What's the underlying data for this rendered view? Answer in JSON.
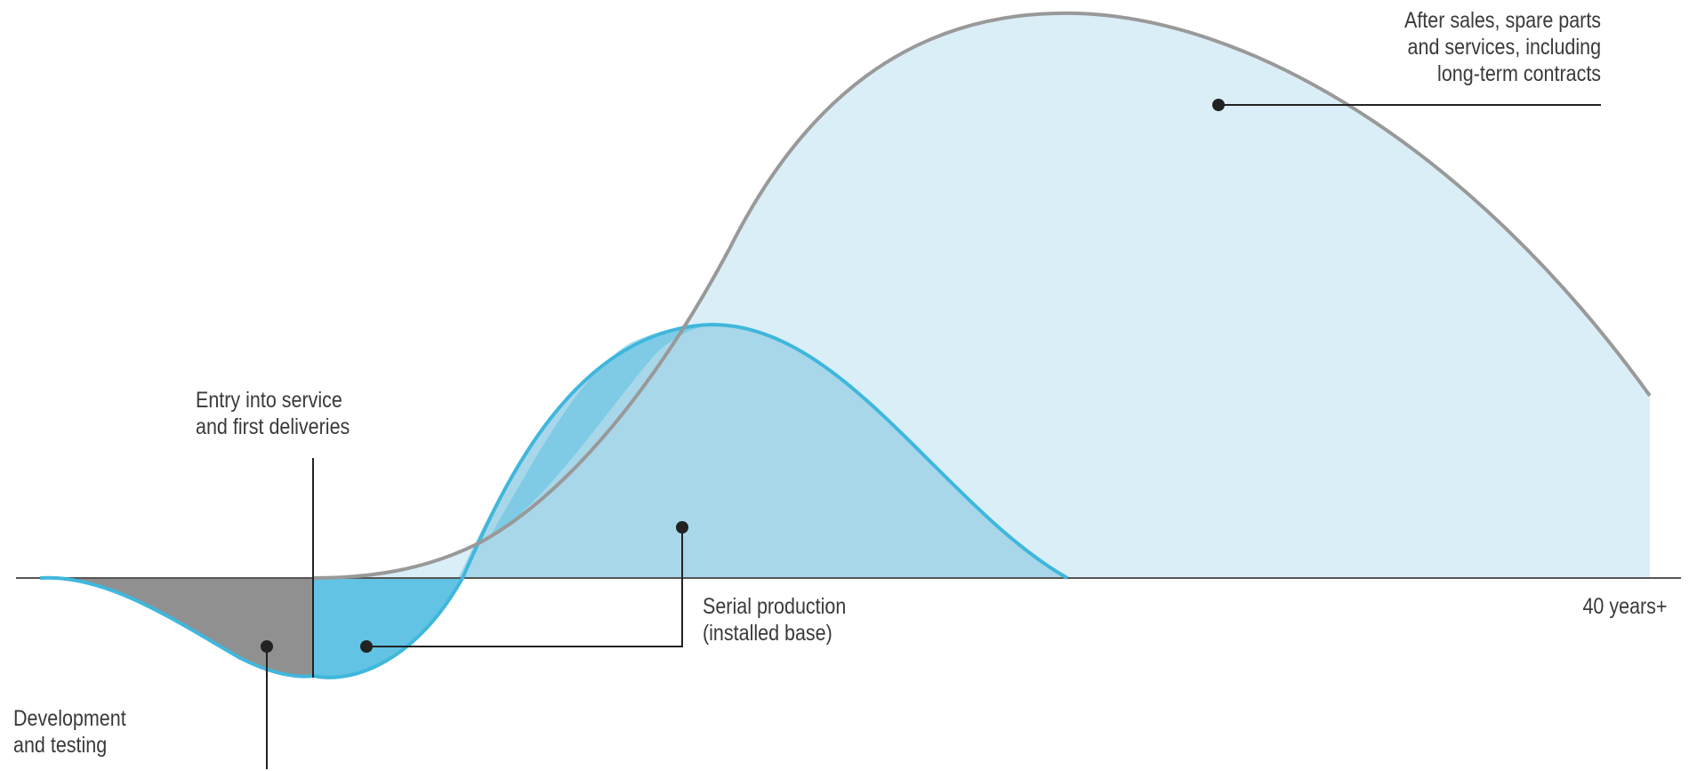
{
  "labels": {
    "development": [
      "Development",
      "and testing"
    ],
    "entry": [
      "Entry into service",
      "and first deliveries"
    ],
    "serial": [
      "Serial production",
      "(installed base)"
    ],
    "aftersales": [
      "After sales, spare parts",
      "and services, including",
      "long-term contracts"
    ],
    "axis_end": "40 years+"
  },
  "colors": {
    "development_fill": "#909090",
    "serial_fill": "#a8d7ea",
    "serial_line": "#3fb7dc",
    "serial_dark": "#5cc1e2",
    "aftersales_fill": "#daeef8",
    "aftersales_line": "#999999",
    "axis": "#555555",
    "leader": "#222222"
  }
}
